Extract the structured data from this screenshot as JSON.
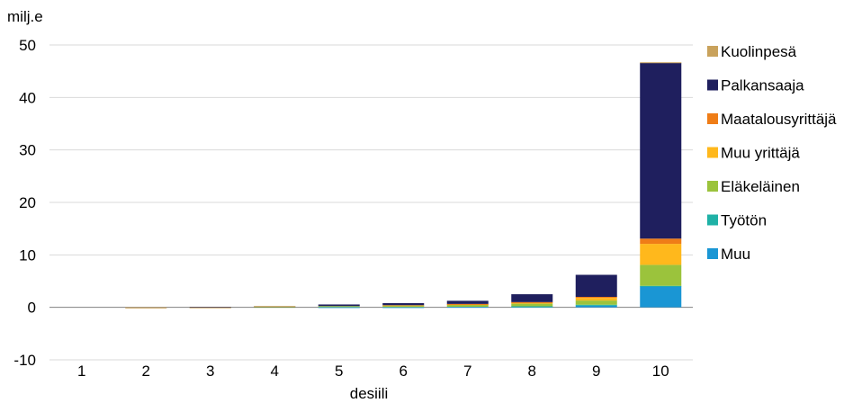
{
  "chart_data": {
    "type": "bar",
    "stacked": true,
    "title": "",
    "ylabel": "milj.e",
    "xlabel": "desiili",
    "ylim": [
      -10,
      50
    ],
    "yticks": [
      -10,
      0,
      10,
      20,
      30,
      40,
      50
    ],
    "grid": true,
    "legend_position": "right",
    "categories": [
      "1",
      "2",
      "3",
      "4",
      "5",
      "6",
      "7",
      "8",
      "9",
      "10"
    ],
    "series": [
      {
        "name": "Muu",
        "color": "#1a96d4",
        "values": [
          0.0,
          0.0,
          0.0,
          0.0,
          0.05,
          0.05,
          0.1,
          0.15,
          0.3,
          4.0
        ]
      },
      {
        "name": "Työtön",
        "color": "#1fb1a6",
        "values": [
          0.0,
          0.0,
          0.0,
          0.0,
          0.0,
          0.0,
          0.0,
          0.05,
          0.2,
          0.1
        ]
      },
      {
        "name": "Eläkeläinen",
        "color": "#9bc33c",
        "values": [
          0.0,
          0.0,
          0.05,
          0.1,
          0.2,
          0.3,
          0.4,
          0.5,
          0.8,
          4.0
        ]
      },
      {
        "name": "Muu yrittäjä",
        "color": "#ffb81c",
        "values": [
          0.0,
          0.0,
          0.0,
          0.0,
          0.0,
          0.05,
          0.1,
          0.2,
          0.5,
          4.0
        ]
      },
      {
        "name": "Maatalousyrittäjä",
        "color": "#ef7d17",
        "values": [
          0.0,
          0.0,
          0.0,
          0.0,
          0.0,
          0.0,
          0.05,
          0.1,
          0.2,
          1.0
        ]
      },
      {
        "name": "Palkansaaja",
        "color": "#1f1f5e",
        "values": [
          0.0,
          0.0,
          0.05,
          0.1,
          0.3,
          0.4,
          0.6,
          1.5,
          4.2,
          33.5
        ]
      },
      {
        "name": "Kuolinpesä",
        "color": "#c9a25c",
        "values": [
          0.0,
          -0.2,
          -0.1,
          0.05,
          0.0,
          0.0,
          0.0,
          0.0,
          0.0,
          0.1
        ]
      }
    ],
    "legend_order": [
      "Kuolinpesä",
      "Palkansaaja",
      "Maatalousyrittäjä",
      "Muu yrittäjä",
      "Eläkeläinen",
      "Työtön",
      "Muu"
    ]
  }
}
